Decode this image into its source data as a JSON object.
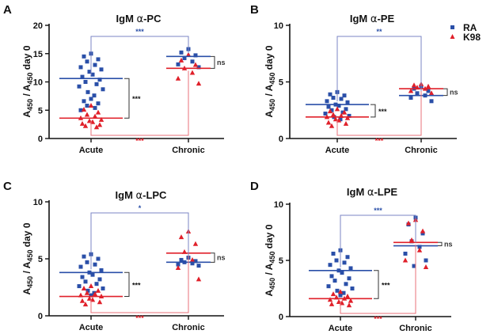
{
  "legend": {
    "items": [
      {
        "label": "RA",
        "color": "#2a4fa8",
        "marker": "square"
      },
      {
        "label": "K98",
        "color": "#e0202a",
        "marker": "triangle"
      }
    ]
  },
  "chart_data": [
    {
      "panel": "A",
      "type": "scatter",
      "title_prefix": "IgM ",
      "title_greek": "α",
      "title_suffix": "-PC",
      "ylabel": "A450 / A450 day 0",
      "categories": [
        "Acute",
        "Chronic"
      ],
      "ylim": [
        0,
        20
      ],
      "yticks": [
        0,
        5,
        10,
        15,
        20
      ],
      "series": [
        {
          "name": "RA",
          "color": "#2a4fa8",
          "acute": [
            15.0,
            14.5,
            14.0,
            13.6,
            13.0,
            12.6,
            12.2,
            11.8,
            11.3,
            10.9,
            10.4,
            10.0,
            9.6,
            9.2,
            8.7,
            8.2,
            7.6,
            7.0,
            6.6,
            6.2,
            5.8,
            5.4,
            5.0
          ],
          "chronic": [
            15.8,
            15.2,
            14.7,
            14.2,
            13.6,
            13.1,
            12.6
          ]
        },
        {
          "name": "K98",
          "color": "#e0202a",
          "acute": [
            5.8,
            5.1,
            4.6,
            4.2,
            3.9,
            3.6,
            3.3,
            3.1,
            2.9,
            2.6,
            2.4,
            2.2,
            2.0
          ],
          "chronic": [
            14.8,
            13.8,
            13.0,
            12.4,
            11.6,
            10.6,
            9.7
          ]
        }
      ],
      "means": {
        "RA": {
          "acute": 10.6,
          "chronic": 14.5
        },
        "K98": {
          "acute": 3.6,
          "chronic": 12.4
        }
      },
      "significance": {
        "top": "***",
        "within_acute": "***",
        "within_chronic": "ns",
        "bottom": "***"
      }
    },
    {
      "panel": "B",
      "type": "scatter",
      "title_prefix": "IgM ",
      "title_greek": "α",
      "title_suffix": "-PE",
      "ylabel": "A450 / A450 day 0",
      "categories": [
        "Acute",
        "Chronic"
      ],
      "ylim": [
        0,
        10
      ],
      "yticks": [
        0,
        5,
        10
      ],
      "series": [
        {
          "name": "RA",
          "color": "#2a4fa8",
          "acute": [
            4.1,
            3.9,
            3.8,
            3.6,
            3.5,
            3.3,
            3.2,
            3.0,
            2.9,
            2.8,
            2.6,
            2.5,
            2.3,
            2.2,
            2.0,
            1.9,
            1.7
          ],
          "chronic": [
            4.6,
            4.4,
            4.2,
            4.0,
            3.8,
            3.6,
            3.3
          ]
        },
        {
          "name": "K98",
          "color": "#e0202a",
          "acute": [
            2.6,
            2.4,
            2.3,
            2.1,
            2.0,
            1.9,
            1.8,
            1.7,
            1.6,
            1.4,
            1.3,
            1.1
          ],
          "chronic": [
            4.8,
            4.7,
            4.6,
            4.5,
            4.4,
            4.2,
            4.0
          ]
        }
      ],
      "means": {
        "RA": {
          "acute": 3.0,
          "chronic": 3.8
        },
        "K98": {
          "acute": 1.9,
          "chronic": 4.4
        }
      },
      "significance": {
        "top": "**",
        "within_acute": "***",
        "within_chronic": "ns",
        "bottom": "***"
      }
    },
    {
      "panel": "C",
      "type": "scatter",
      "title_prefix": "IgM ",
      "title_greek": "α",
      "title_suffix": "-LPC",
      "ylabel": "A450 / A450 day 0",
      "categories": [
        "Acute",
        "Chronic"
      ],
      "ylim": [
        0,
        10
      ],
      "yticks": [
        0,
        5,
        10
      ],
      "series": [
        {
          "name": "RA",
          "color": "#2a4fa8",
          "acute": [
            5.4,
            5.2,
            5.0,
            4.7,
            4.5,
            4.3,
            4.0,
            3.8,
            3.6,
            3.4,
            3.2,
            3.0,
            2.8,
            2.6,
            2.4,
            2.2,
            2.0,
            1.8
          ],
          "chronic": [
            5.1,
            4.9,
            4.8,
            4.7,
            4.6,
            4.5,
            4.4
          ]
        },
        {
          "name": "K98",
          "color": "#e0202a",
          "acute": [
            2.6,
            2.4,
            2.2,
            2.0,
            1.9,
            1.8,
            1.7,
            1.5,
            1.4,
            1.3,
            1.2,
            1.0
          ],
          "chronic": [
            7.4,
            6.9,
            6.3,
            5.6,
            4.9,
            4.2,
            3.2
          ]
        }
      ],
      "means": {
        "RA": {
          "acute": 3.8,
          "chronic": 4.7
        },
        "K98": {
          "acute": 1.7,
          "chronic": 5.5
        }
      },
      "significance": {
        "top": "*",
        "within_acute": "***",
        "within_chronic": "ns",
        "bottom": "***"
      }
    },
    {
      "panel": "D",
      "type": "scatter",
      "title_prefix": "IgM ",
      "title_greek": "α",
      "title_suffix": "-LPE",
      "ylabel": "A450 / A450 day 0",
      "categories": [
        "Acute",
        "Chronic"
      ],
      "ylim": [
        0,
        10
      ],
      "yticks": [
        0,
        5,
        10
      ],
      "series": [
        {
          "name": "RA",
          "color": "#2a4fa8",
          "acute": [
            5.9,
            5.6,
            5.3,
            5.0,
            4.8,
            4.6,
            4.3,
            4.1,
            3.9,
            3.6,
            3.4,
            3.2,
            2.9,
            2.7,
            2.5,
            2.3,
            2.1,
            1.9
          ],
          "chronic": [
            8.8,
            8.2,
            7.4,
            6.7,
            6.2,
            5.6,
            5.0,
            4.5
          ]
        },
        {
          "name": "K98",
          "color": "#e0202a",
          "acute": [
            2.2,
            2.0,
            1.8,
            1.7,
            1.6,
            1.5,
            1.4,
            1.3,
            1.2,
            1.1,
            1.0
          ],
          "chronic": [
            8.6,
            8.3,
            7.6,
            6.8,
            5.9,
            5.0,
            4.4
          ]
        }
      ],
      "means": {
        "RA": {
          "acute": 4.1,
          "chronic": 6.3
        },
        "K98": {
          "acute": 1.6,
          "chronic": 6.6
        }
      },
      "significance": {
        "top": "***",
        "within_acute": "***",
        "within_chronic": "ns",
        "bottom": "***"
      }
    }
  ]
}
